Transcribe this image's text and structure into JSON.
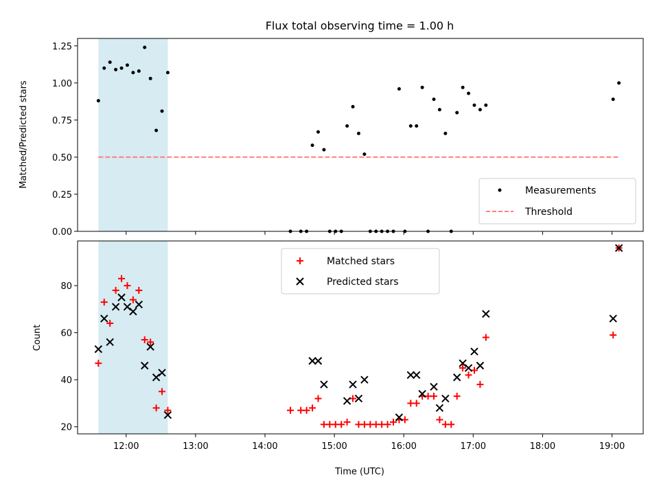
{
  "chart_data": [
    {
      "type": "scatter",
      "title": "Flux total observing time = 1.00 h",
      "xlabel": "",
      "ylabel": "Matched/Predicted stars",
      "xlim": [
        "11:18",
        "19:27"
      ],
      "ylim": [
        0,
        1.3
      ],
      "yticks": [
        "0.00",
        "0.25",
        "0.50",
        "0.75",
        "1.00",
        "1.25"
      ],
      "highlight_span": [
        "11:36",
        "12:36"
      ],
      "legend_position": "lower right",
      "series": [
        {
          "name": "Measurements",
          "marker": "dot",
          "color": "#000000",
          "points": [
            [
              "11:36",
              0.88
            ],
            [
              "11:41",
              1.1
            ],
            [
              "11:46",
              1.14
            ],
            [
              "11:51",
              1.09
            ],
            [
              "11:56",
              1.1
            ],
            [
              "12:01",
              1.12
            ],
            [
              "12:06",
              1.07
            ],
            [
              "12:11",
              1.08
            ],
            [
              "12:16",
              1.24
            ],
            [
              "12:21",
              1.03
            ],
            [
              "12:26",
              0.68
            ],
            [
              "12:31",
              0.81
            ],
            [
              "12:36",
              1.07
            ],
            [
              "14:22",
              0.0
            ],
            [
              "14:31",
              0.0
            ],
            [
              "14:36",
              0.0
            ],
            [
              "14:41",
              0.58
            ],
            [
              "14:46",
              0.67
            ],
            [
              "14:51",
              0.55
            ],
            [
              "14:56",
              0.0
            ],
            [
              "15:01",
              0.0
            ],
            [
              "15:06",
              0.0
            ],
            [
              "15:11",
              0.71
            ],
            [
              "15:16",
              0.84
            ],
            [
              "15:21",
              0.66
            ],
            [
              "15:26",
              0.52
            ],
            [
              "15:31",
              0.0
            ],
            [
              "15:36",
              0.0
            ],
            [
              "15:41",
              0.0
            ],
            [
              "15:46",
              0.0
            ],
            [
              "15:51",
              0.0
            ],
            [
              "15:56",
              0.96
            ],
            [
              "16:01",
              0.0
            ],
            [
              "16:06",
              0.71
            ],
            [
              "16:11",
              0.71
            ],
            [
              "16:16",
              0.97
            ],
            [
              "16:21",
              0.0
            ],
            [
              "16:26",
              0.89
            ],
            [
              "16:31",
              0.82
            ],
            [
              "16:36",
              0.66
            ],
            [
              "16:41",
              0.0
            ],
            [
              "16:46",
              0.8
            ],
            [
              "16:51",
              0.97
            ],
            [
              "16:56",
              0.93
            ],
            [
              "17:01",
              0.85
            ],
            [
              "17:06",
              0.82
            ],
            [
              "17:11",
              0.85
            ],
            [
              "19:01",
              0.89
            ],
            [
              "19:06",
              1.0
            ]
          ]
        },
        {
          "name": "Threshold",
          "marker": "dashed-line",
          "color": "#ff7f7f",
          "points": [
            [
              "11:36",
              0.5
            ],
            [
              "19:06",
              0.5
            ]
          ]
        }
      ]
    },
    {
      "type": "scatter",
      "title": "",
      "xlabel": "Time (UTC)",
      "ylabel": "Count",
      "xlim": [
        "11:18",
        "19:27"
      ],
      "ylim": [
        17,
        99
      ],
      "yticks": [
        "20",
        "40",
        "60",
        "80"
      ],
      "xticks": [
        "12:00",
        "13:00",
        "14:00",
        "15:00",
        "16:00",
        "17:00",
        "18:00",
        "19:00"
      ],
      "highlight_span": [
        "11:36",
        "12:36"
      ],
      "legend_position": "upper center",
      "series": [
        {
          "name": "Matched stars",
          "marker": "plus",
          "color": "#ff0000",
          "points": [
            [
              "11:36",
              47
            ],
            [
              "11:41",
              73
            ],
            [
              "11:46",
              64
            ],
            [
              "11:51",
              78
            ],
            [
              "11:56",
              83
            ],
            [
              "12:01",
              80
            ],
            [
              "12:06",
              74
            ],
            [
              "12:11",
              78
            ],
            [
              "12:16",
              57
            ],
            [
              "12:21",
              56
            ],
            [
              "12:26",
              28
            ],
            [
              "12:31",
              35
            ],
            [
              "12:36",
              27
            ],
            [
              "14:22",
              27
            ],
            [
              "14:31",
              27
            ],
            [
              "14:36",
              27
            ],
            [
              "14:41",
              28
            ],
            [
              "14:46",
              32
            ],
            [
              "14:51",
              21
            ],
            [
              "14:56",
              21
            ],
            [
              "15:01",
              21
            ],
            [
              "15:06",
              21
            ],
            [
              "15:11",
              22
            ],
            [
              "15:16",
              32
            ],
            [
              "15:21",
              21
            ],
            [
              "15:26",
              21
            ],
            [
              "15:31",
              21
            ],
            [
              "15:36",
              21
            ],
            [
              "15:41",
              21
            ],
            [
              "15:46",
              21
            ],
            [
              "15:51",
              22
            ],
            [
              "15:56",
              23
            ],
            [
              "16:01",
              23
            ],
            [
              "16:06",
              30
            ],
            [
              "16:11",
              30
            ],
            [
              "16:16",
              33
            ],
            [
              "16:21",
              33
            ],
            [
              "16:26",
              33
            ],
            [
              "16:31",
              23
            ],
            [
              "16:36",
              21
            ],
            [
              "16:41",
              21
            ],
            [
              "16:46",
              33
            ],
            [
              "16:51",
              45
            ],
            [
              "16:56",
              42
            ],
            [
              "17:01",
              44
            ],
            [
              "17:06",
              38
            ],
            [
              "17:11",
              58
            ],
            [
              "19:01",
              59
            ],
            [
              "19:06",
              96
            ]
          ]
        },
        {
          "name": "Predicted stars",
          "marker": "x",
          "color": "#000000",
          "points": [
            [
              "11:36",
              53
            ],
            [
              "11:41",
              66
            ],
            [
              "11:46",
              56
            ],
            [
              "11:51",
              71
            ],
            [
              "11:56",
              75
            ],
            [
              "12:01",
              71
            ],
            [
              "12:06",
              69
            ],
            [
              "12:11",
              72
            ],
            [
              "12:16",
              46
            ],
            [
              "12:21",
              54
            ],
            [
              "12:26",
              41
            ],
            [
              "12:31",
              43
            ],
            [
              "12:36",
              25
            ],
            [
              "14:41",
              48
            ],
            [
              "14:46",
              48
            ],
            [
              "14:51",
              38
            ],
            [
              "15:11",
              31
            ],
            [
              "15:16",
              38
            ],
            [
              "15:21",
              32
            ],
            [
              "15:26",
              40
            ],
            [
              "15:56",
              24
            ],
            [
              "16:06",
              42
            ],
            [
              "16:11",
              42
            ],
            [
              "16:16",
              34
            ],
            [
              "16:26",
              37
            ],
            [
              "16:31",
              28
            ],
            [
              "16:36",
              32
            ],
            [
              "16:46",
              41
            ],
            [
              "16:51",
              47
            ],
            [
              "16:56",
              45
            ],
            [
              "17:01",
              52
            ],
            [
              "17:06",
              46
            ],
            [
              "17:11",
              68
            ],
            [
              "19:01",
              66
            ],
            [
              "19:06",
              96
            ]
          ]
        }
      ]
    }
  ]
}
